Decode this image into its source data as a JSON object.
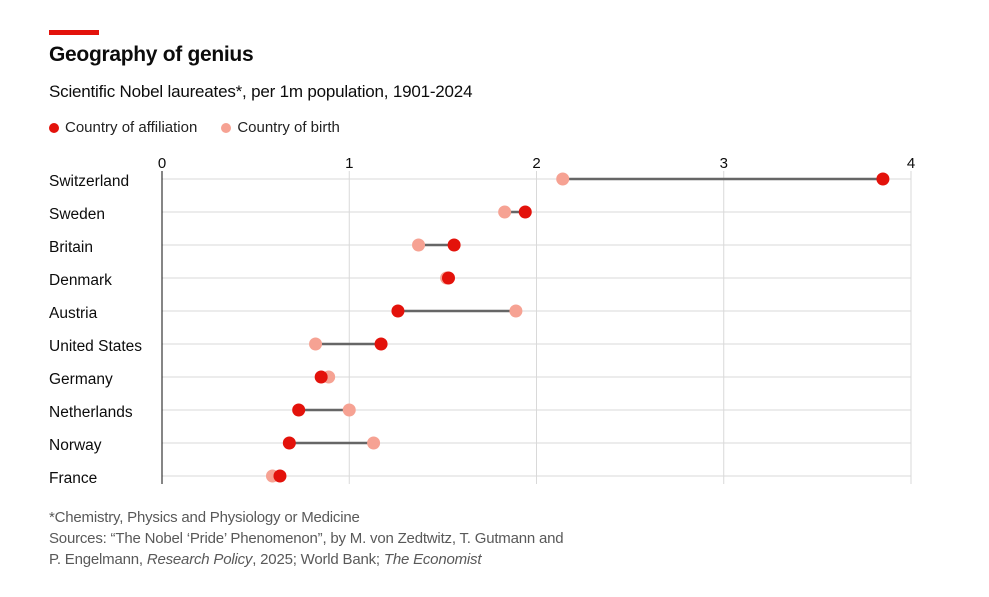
{
  "header": {
    "title": "Geography of genius",
    "subtitle": "Scientific Nobel laureates*, per 1m population, 1901-2024"
  },
  "legend": [
    {
      "label": "Country of affiliation",
      "color": "#e3120b"
    },
    {
      "label": "Country of birth",
      "color": "#f6a293"
    }
  ],
  "footer": {
    "note": "*Chemistry, Physics and Physiology or Medicine",
    "source_line1": "Sources: “The Nobel ‘Pride’ Phenomenon”, by M. von Zedtwitz, T. Gutmann and",
    "source_line2_a": "P. Engelmann, ",
    "source_line2_b": "Research Policy",
    "source_line2_c": ", 2025; World Bank; ",
    "source_line2_d": "The Economist"
  },
  "chart_data": {
    "type": "dumbbell",
    "title": "Geography of genius",
    "subtitle": "Scientific Nobel laureates*, per 1m population, 1901-2024",
    "xlabel": "",
    "ylabel": "",
    "xlim": [
      0,
      4
    ],
    "xticks": [
      "0",
      "1",
      "2",
      "3",
      "4"
    ],
    "grid": true,
    "legend_position": "top-left",
    "categories": [
      "Switzerland",
      "Sweden",
      "Britain",
      "Denmark",
      "Austria",
      "United States",
      "Germany",
      "Netherlands",
      "Norway",
      "France"
    ],
    "series": [
      {
        "name": "Country of affiliation",
        "color": "#e3120b",
        "values": [
          3.85,
          1.94,
          1.56,
          1.53,
          1.26,
          1.17,
          0.85,
          0.73,
          0.68,
          0.63
        ]
      },
      {
        "name": "Country of birth",
        "color": "#f6a293",
        "values": [
          2.14,
          1.83,
          1.37,
          1.52,
          1.89,
          0.82,
          0.89,
          1.0,
          1.13,
          0.59
        ]
      }
    ]
  }
}
